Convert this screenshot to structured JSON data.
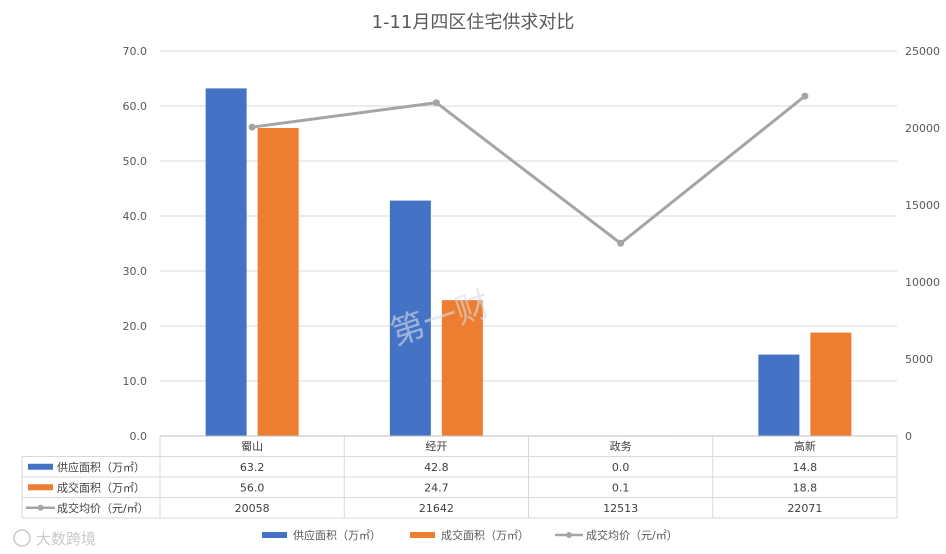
{
  "chart_data": {
    "type": "bar",
    "title": "1-11月四区住宅供求对比",
    "categories": [
      "蜀山",
      "经开",
      "政务",
      "高新"
    ],
    "series": [
      {
        "name": "供应面积（万㎡）",
        "type": "bar",
        "axis": "left",
        "color": "#4472C4",
        "values": [
          63.2,
          42.8,
          0.0,
          14.8
        ],
        "labels": [
          "63.2",
          "42.8",
          "0.0",
          "14.8"
        ]
      },
      {
        "name": "成交面积（万㎡）",
        "type": "bar",
        "axis": "left",
        "color": "#ED7D31",
        "values": [
          56.0,
          24.7,
          0.1,
          18.8
        ],
        "labels": [
          "56.0",
          "24.7",
          "0.1",
          "18.8"
        ]
      },
      {
        "name": "成交均价（元/㎡）",
        "type": "line",
        "axis": "right",
        "color": "#A5A5A5",
        "values": [
          20058,
          21642,
          12513,
          22071
        ],
        "labels": [
          "20058",
          "21642",
          "12513",
          "22071"
        ]
      }
    ],
    "y_left": {
      "ylim": [
        0,
        70
      ],
      "ticks": [
        "0.0",
        "10.0",
        "20.0",
        "30.0",
        "40.0",
        "50.0",
        "60.0",
        "70.0"
      ]
    },
    "y_right": {
      "ylim": [
        0,
        25000
      ],
      "ticks": [
        "0",
        "5000",
        "10000",
        "15000",
        "20000",
        "25000"
      ]
    },
    "grid": true,
    "legend": "bottom",
    "data_table": true
  },
  "watermarks": {
    "center": "第一财",
    "corner": "大数跨境"
  }
}
